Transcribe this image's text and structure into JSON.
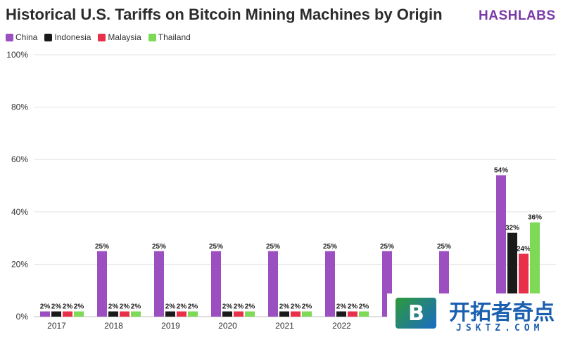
{
  "header": {
    "title": "Historical U.S. Tariffs on Bitcoin Mining Machines by Origin",
    "brand": "HASHLABS"
  },
  "watermark": {
    "logo_letter": "B",
    "text": "开拓者奇点",
    "subtext": "JSKTZ.COM"
  },
  "colors": {
    "China": "#9b4fc0",
    "Indonesia": "#1a1a1a",
    "Malaysia": "#e8304a",
    "Thailand": "#7ed957",
    "grid": "#e3e3e3",
    "axis_text": "#333333"
  },
  "chart_data": {
    "type": "bar",
    "title": "Historical U.S. Tariffs on Bitcoin Mining Machines by Origin",
    "xlabel": "",
    "ylabel": "",
    "ylim": [
      0,
      100
    ],
    "yticks": [
      "0%",
      "20%",
      "40%",
      "60%",
      "80%",
      "100%"
    ],
    "grid": true,
    "legend_position": "top-left",
    "categories": [
      "2017",
      "2018",
      "2019",
      "2020",
      "2021",
      "2022",
      "",
      "",
      ""
    ],
    "series": [
      {
        "name": "China",
        "values": [
          2,
          25,
          25,
          25,
          25,
          25,
          25,
          25,
          54
        ],
        "labels": [
          "2%",
          "25%",
          "25%",
          "25%",
          "25%",
          "25%",
          "25%",
          "25%",
          "54%"
        ]
      },
      {
        "name": "Indonesia",
        "values": [
          2,
          2,
          2,
          2,
          2,
          2,
          null,
          null,
          32
        ],
        "labels": [
          "2%",
          "2%",
          "2%",
          "2%",
          "2%",
          "2%",
          "",
          "",
          "32%"
        ]
      },
      {
        "name": "Malaysia",
        "values": [
          2,
          2,
          2,
          2,
          2,
          2,
          null,
          null,
          24
        ],
        "labels": [
          "2%",
          "2%",
          "2%",
          "2%",
          "2%",
          "2%",
          "",
          "",
          "24%"
        ]
      },
      {
        "name": "Thailand",
        "values": [
          2,
          2,
          2,
          2,
          2,
          2,
          null,
          null,
          36
        ],
        "labels": [
          "2%",
          "2%",
          "2%",
          "2%",
          "2%",
          "2%",
          "",
          "",
          "36%"
        ]
      }
    ]
  }
}
